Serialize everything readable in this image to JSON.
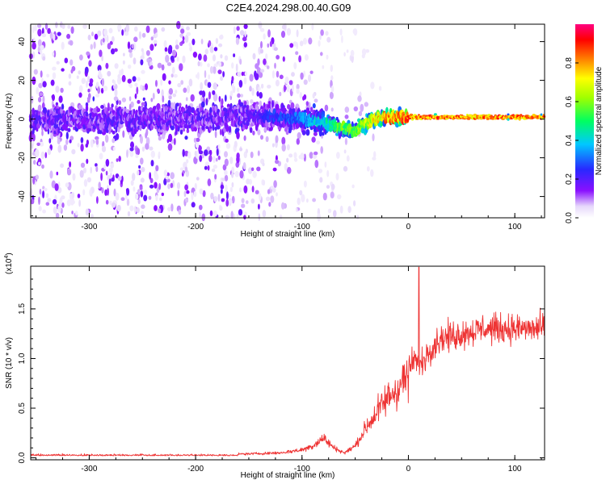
{
  "title": "C2E4.2024.298.00.40.G09",
  "chart_data": [
    {
      "type": "heatmap",
      "xlabel": "Height of straight line (km)",
      "ylabel": "Frequency (Hz)",
      "xlim": [
        -355,
        128
      ],
      "ylim": [
        -51,
        49
      ],
      "x_ticks": [
        -300,
        -200,
        -100,
        0,
        100
      ],
      "y_ticks": [
        -40,
        -20,
        0,
        20,
        40
      ],
      "colorbar": {
        "label": "Normalized spectral amplitude",
        "range": [
          0,
          1
        ],
        "ticks": [
          0.0,
          0.2,
          0.4,
          0.6,
          0.8
        ],
        "tick_labels": [
          "0.0",
          "0.2",
          "0.4",
          "0.6",
          "0.8"
        ],
        "colors": [
          "#ffffff",
          "#d8c8f8",
          "#7a00ff",
          "#2030ff",
          "#00d0ff",
          "#00ff50",
          "#ffff00",
          "#ff8000",
          "#ff0000",
          "#ff0080"
        ]
      },
      "signal_track": {
        "x": [
          -350,
          -300,
          -250,
          -200,
          -150,
          -120,
          -100,
          -80,
          -60,
          -50,
          -40,
          -30,
          -20,
          -10,
          0,
          20,
          40,
          60,
          80,
          100,
          125
        ],
        "frequency": [
          0,
          0,
          0,
          0,
          2,
          1,
          0,
          -2,
          -5,
          -6,
          -2,
          0,
          1,
          1,
          1,
          1,
          1,
          1,
          1,
          1,
          1
        ],
        "peak_amplitude": [
          0.12,
          0.12,
          0.12,
          0.12,
          0.2,
          0.3,
          0.35,
          0.45,
          0.6,
          0.6,
          0.7,
          0.8,
          0.85,
          0.9,
          0.9,
          0.9,
          0.9,
          0.9,
          0.9,
          0.9,
          0.9
        ]
      },
      "noise_extent_x": [
        -355,
        -25
      ]
    },
    {
      "type": "line",
      "xlabel": "Height of straight line (km)",
      "ylabel": "SNR (10 * v/v)",
      "y_multiplier": "(x10",
      "y_multiplier_exp": "4",
      "xlim": [
        -355,
        128
      ],
      "ylim": [
        -0.02,
        1.93
      ],
      "x_ticks": [
        -300,
        -200,
        -100,
        0,
        100
      ],
      "y_ticks": [
        0.0,
        0.5,
        1.0,
        1.5
      ],
      "y_tick_labels": [
        "0.0",
        "0.5",
        "1.0",
        "1.5"
      ],
      "series": [
        {
          "color": "#ee3333",
          "x": [
            -355,
            -300,
            -200,
            -150,
            -120,
            -100,
            -90,
            -80,
            -70,
            -60,
            -50,
            -40,
            -30,
            -20,
            -10,
            0,
            5,
            10,
            20,
            30,
            50,
            70,
            90,
            110,
            128
          ],
          "y": [
            0.02,
            0.03,
            0.03,
            0.04,
            0.05,
            0.08,
            0.12,
            0.2,
            0.1,
            0.05,
            0.12,
            0.3,
            0.45,
            0.6,
            0.7,
            0.85,
            1.0,
            0.9,
            1.1,
            1.2,
            1.25,
            1.3,
            1.3,
            1.3,
            1.3
          ],
          "spike": {
            "x": 10,
            "y": 1.92
          }
        }
      ]
    }
  ]
}
